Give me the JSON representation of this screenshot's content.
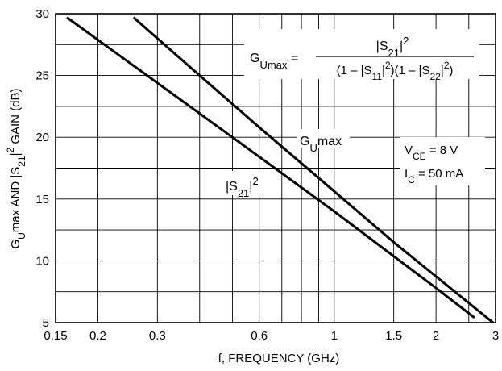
{
  "chart_data": {
    "type": "line",
    "x_scale": "log",
    "xlabel": "f, FREQUENCY (GHz)",
    "ylabel_parts": [
      "G",
      "U",
      "max AND |S",
      "21",
      "|",
      "2",
      " GAIN (dB)"
    ],
    "xlim": [
      0.15,
      3
    ],
    "ylim": [
      5,
      30
    ],
    "x_ticks": [
      0.15,
      0.2,
      0.3,
      0.6,
      1,
      1.5,
      2,
      3
    ],
    "x_tick_labels": [
      "0.15",
      "0.2",
      "0.3",
      "0.6",
      "1",
      "1.5",
      "2",
      "3"
    ],
    "y_ticks": [
      5,
      10,
      15,
      20,
      25,
      30
    ],
    "y_tick_labels": [
      "5",
      "10",
      "15",
      "20",
      "25",
      "30"
    ],
    "grid": true,
    "series": [
      {
        "name": "GUmax",
        "label_parts": [
          "G",
          "U",
          "max"
        ],
        "x": [
          0.255,
          0.4,
          0.6,
          0.9,
          1.5,
          2.95
        ],
        "y": [
          29.7,
          25.0,
          20.8,
          16.7,
          11.5,
          5.0
        ]
      },
      {
        "name": "|S21|2",
        "label_parts": [
          "|S",
          "21",
          "|",
          "2"
        ],
        "x": [
          0.162,
          0.3,
          0.5,
          1.0,
          2.0,
          2.6
        ],
        "y": [
          29.7,
          24.4,
          20.0,
          14.0,
          7.8,
          5.4
        ]
      }
    ],
    "annotations": {
      "formula_lhs": [
        "G",
        "Umax",
        " ="
      ],
      "formula_num": [
        "|S",
        "21",
        "|",
        "2"
      ],
      "formula_den": [
        "(1 – |S",
        "11",
        "|",
        "2",
        ")(1 – |S",
        "22",
        "|",
        "2",
        ")"
      ],
      "vce": [
        "V",
        "CE",
        " = 8 V"
      ],
      "ic": [
        "I",
        "C",
        " = 50 mA"
      ]
    }
  }
}
